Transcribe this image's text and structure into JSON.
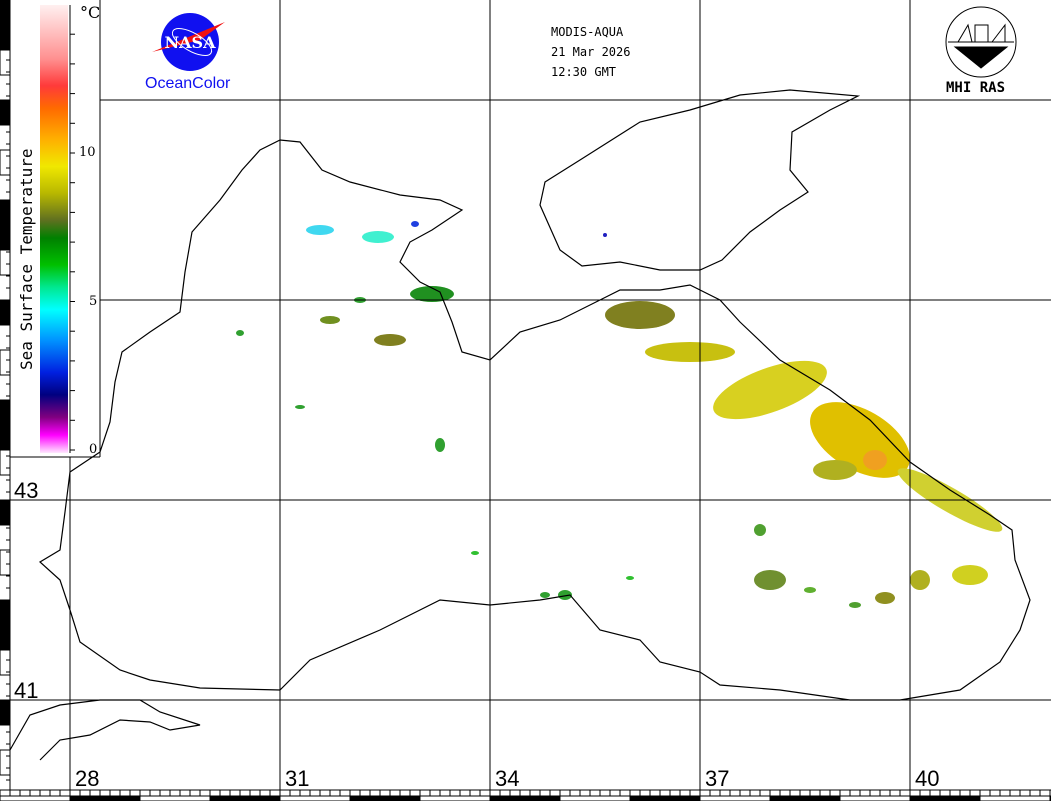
{
  "header": {
    "sensor": "MODIS-AQUA",
    "date": "21 Mar 2026",
    "time": "12:30 GMT"
  },
  "logos": {
    "nasa": {
      "text": "NASA",
      "caption": "OceanColor"
    },
    "institute": {
      "caption": "MHI RAS"
    }
  },
  "colorbar": {
    "title": "Sea Surface Temperature",
    "unit": "°C",
    "ticks": [
      "10",
      "5",
      "0"
    ]
  },
  "grid": {
    "latitudes": [
      "43",
      "41"
    ],
    "longitudes": [
      "28",
      "31",
      "34",
      "37",
      "40"
    ]
  },
  "colors": {
    "nasa_blue": "#1010f0",
    "nasa_red": "#f01010"
  }
}
